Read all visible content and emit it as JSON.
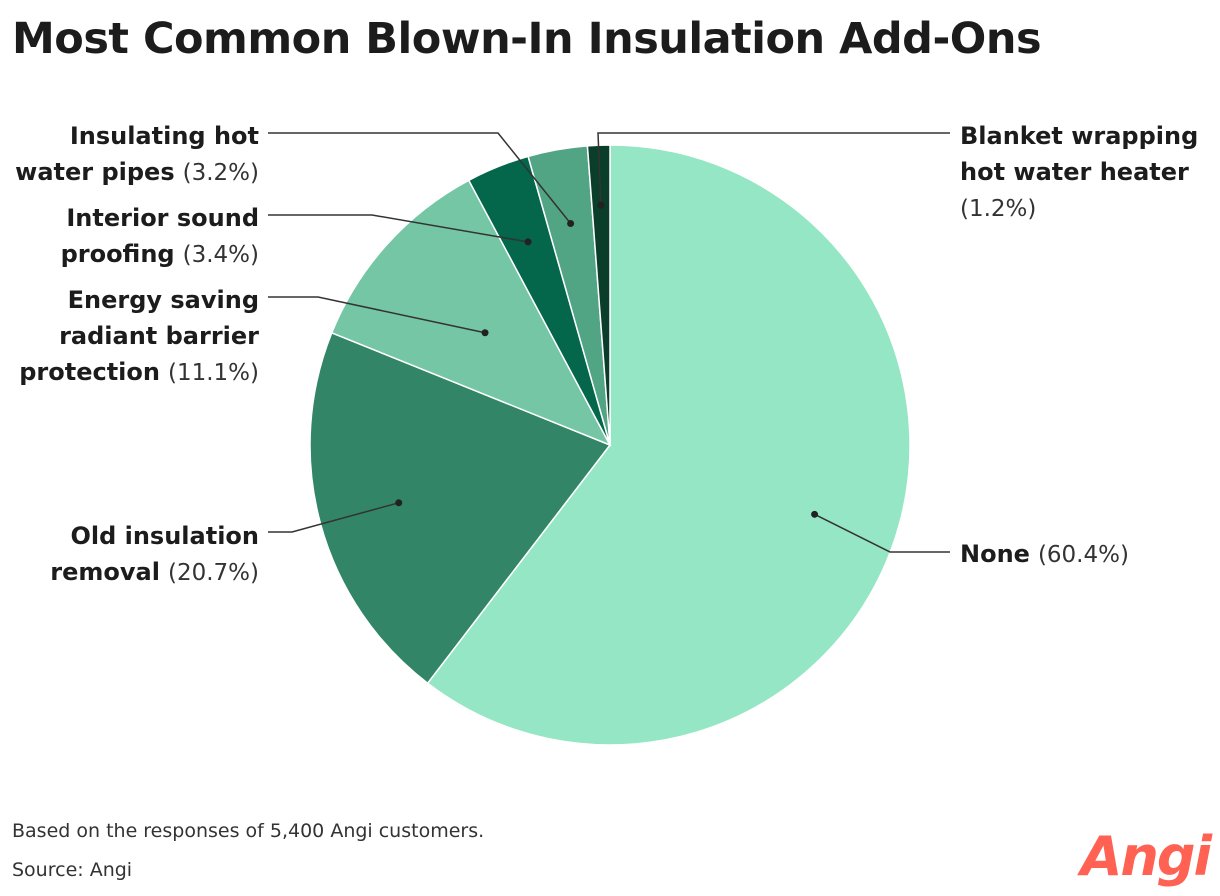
{
  "title": "Most Common Blown-In Insulation Add-Ons",
  "chart_data": {
    "type": "pie",
    "title": "Most Common Blown-In Insulation Add-Ons",
    "unit": "%",
    "slices": [
      {
        "name": "None",
        "label_lines": [
          "None"
        ],
        "value": 60.4,
        "pct_text": "(60.4%)",
        "color": "#95e6c4"
      },
      {
        "name": "Old insulation removal",
        "label_lines": [
          "Old insulation",
          "removal"
        ],
        "value": 20.7,
        "pct_text": "(20.7%)",
        "color": "#328567"
      },
      {
        "name": "Energy saving radiant barrier protection",
        "label_lines": [
          "Energy saving",
          "radiant barrier",
          "protection"
        ],
        "value": 11.1,
        "pct_text": "(11.1%)",
        "color": "#74c6a5"
      },
      {
        "name": "Interior sound proofing",
        "label_lines": [
          "Interior sound",
          "proofing"
        ],
        "value": 3.4,
        "pct_text": "(3.4%)",
        "color": "#04664a"
      },
      {
        "name": "Insulating hot water pipes",
        "label_lines": [
          "Insulating hot",
          "water pipes"
        ],
        "value": 3.2,
        "pct_text": "(3.2%)",
        "color": "#52a584"
      },
      {
        "name": "Blanket wrapping hot water heater",
        "label_lines": [
          "Blanket wrapping",
          "hot water heater"
        ],
        "value": 1.2,
        "pct_text": "(1.2%)",
        "color": "#0b3d2b"
      }
    ]
  },
  "footnote": "Based on the responses of 5,400 Angi customers.",
  "source": "Source: Angi",
  "logo": {
    "text": "Angi",
    "color": "#ff6153"
  }
}
